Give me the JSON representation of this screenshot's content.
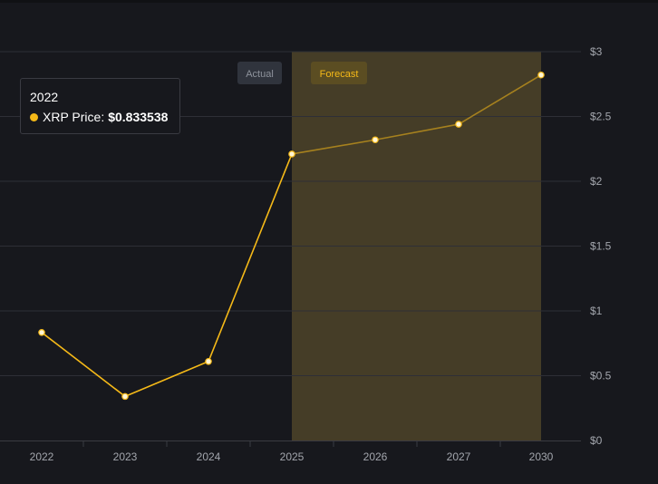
{
  "colors": {
    "background": "#17181d",
    "line": "#f5b918",
    "forecast_band": "#453d27",
    "grid": "#2e2f36",
    "tick_text": "#a3a6ad",
    "actual_badge_bg": "#30343d",
    "actual_badge_text": "#8e939c",
    "forecast_badge_bg": "#5b4d22",
    "forecast_badge_text": "#f5b918"
  },
  "badges": {
    "actual": "Actual",
    "forecast": "Forecast"
  },
  "tooltip": {
    "year": "2022",
    "series_label": "XRP Price:",
    "value": "$0.833538"
  },
  "chart_data": {
    "type": "line",
    "categories": [
      "2022",
      "2023",
      "2024",
      "2025",
      "2026",
      "2027",
      "2030"
    ],
    "series": [
      {
        "name": "XRP Price",
        "values": [
          0.833538,
          0.34,
          0.61,
          2.21,
          2.32,
          2.44,
          2.82
        ]
      }
    ],
    "actual_range": [
      "2022",
      "2025"
    ],
    "forecast_range": [
      "2025",
      "2030"
    ],
    "y_ticks": [
      0,
      0.5,
      1,
      1.5,
      2,
      2.5,
      3
    ],
    "y_tick_labels": [
      "$0",
      "$0.5",
      "$1",
      "$1.5",
      "$2",
      "$2.5",
      "$3"
    ],
    "ylim": [
      0,
      3
    ],
    "grid": true,
    "y_axis_position": "right",
    "title": "",
    "xlabel": "",
    "ylabel": ""
  }
}
